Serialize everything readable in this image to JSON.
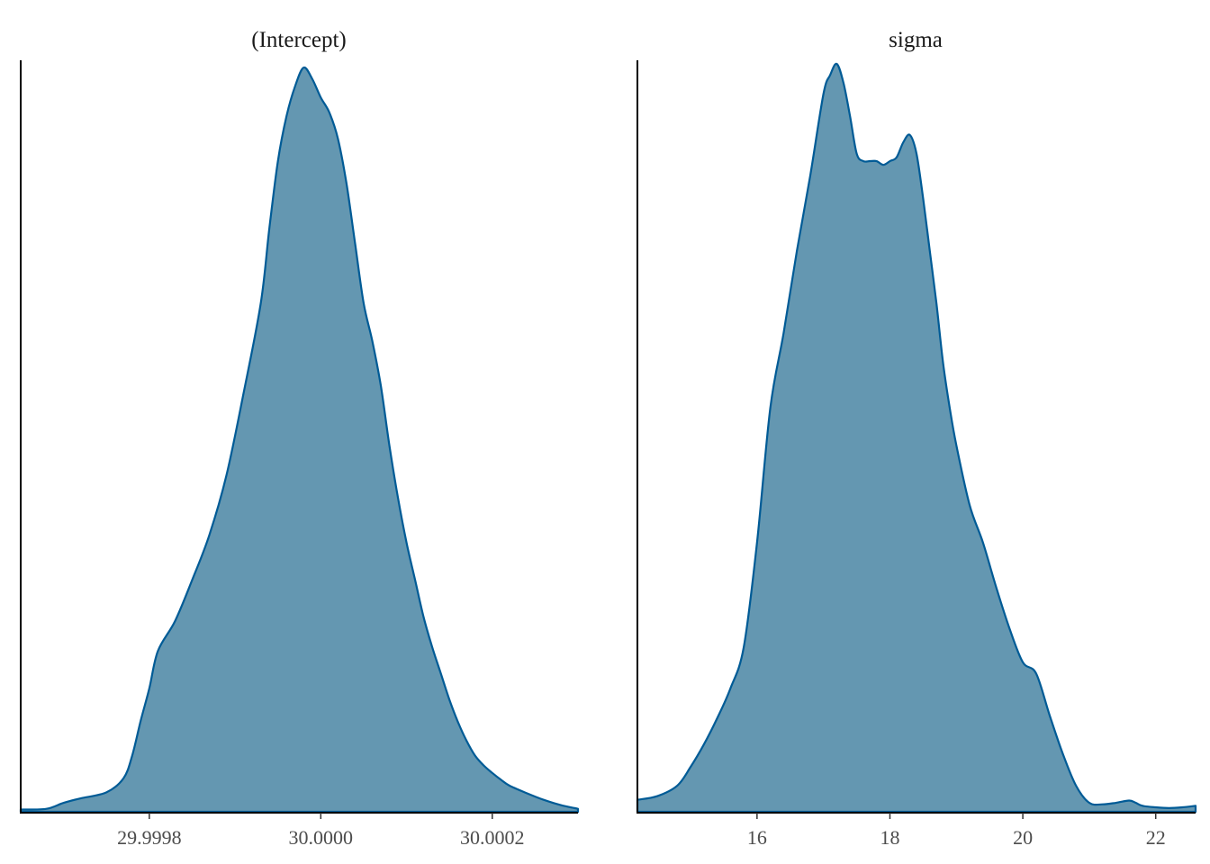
{
  "chart_data": [
    {
      "type": "area",
      "panel": "density",
      "title": "(Intercept)",
      "xlim": [
        29.99965,
        30.0003
      ],
      "ylim": [
        0,
        1
      ],
      "xticks": [
        29.9998,
        30.0,
        30.0002
      ],
      "xtick_labels": [
        "29.9998",
        "30.0000",
        "30.0002"
      ],
      "x": [
        29.99965,
        29.99968,
        29.9997,
        29.99972,
        29.99975,
        29.99977,
        29.99978,
        29.99979,
        29.9998,
        29.99981,
        29.99983,
        29.99985,
        29.99987,
        29.99989,
        29.99991,
        29.99993,
        29.99994,
        29.99995,
        29.99996,
        29.99997,
        29.99998,
        29.99999,
        30.0,
        30.00001,
        30.00002,
        30.00003,
        30.00004,
        30.00005,
        30.00006,
        30.00007,
        30.00008,
        30.00009,
        30.0001,
        30.00011,
        30.00012,
        30.00013,
        30.00014,
        30.00015,
        30.00016,
        30.00017,
        30.00018,
        30.00019,
        30.0002,
        30.00021,
        30.00022,
        30.00024,
        30.00026,
        30.00028,
        30.0003
      ],
      "y": [
        0.003,
        0.004,
        0.012,
        0.018,
        0.026,
        0.045,
        0.075,
        0.122,
        0.165,
        0.215,
        0.255,
        0.31,
        0.37,
        0.45,
        0.56,
        0.68,
        0.78,
        0.87,
        0.93,
        0.97,
        0.995,
        0.98,
        0.955,
        0.935,
        0.9,
        0.84,
        0.76,
        0.68,
        0.63,
        0.57,
        0.49,
        0.42,
        0.36,
        0.31,
        0.26,
        0.22,
        0.185,
        0.15,
        0.12,
        0.095,
        0.075,
        0.062,
        0.052,
        0.043,
        0.035,
        0.025,
        0.016,
        0.009,
        0.004
      ]
    },
    {
      "type": "area",
      "panel": "density",
      "title": "sigma",
      "xlim": [
        14.2,
        22.6
      ],
      "ylim": [
        0,
        1
      ],
      "xticks": [
        16,
        18,
        20,
        22
      ],
      "xtick_labels": [
        "16",
        "18",
        "20",
        "22"
      ],
      "x": [
        14.2,
        14.5,
        14.8,
        15.0,
        15.2,
        15.4,
        15.6,
        15.8,
        16.0,
        16.2,
        16.4,
        16.6,
        16.8,
        17.0,
        17.1,
        17.2,
        17.3,
        17.4,
        17.5,
        17.6,
        17.7,
        17.8,
        17.9,
        18.0,
        18.1,
        18.2,
        18.3,
        18.4,
        18.5,
        18.6,
        18.7,
        18.8,
        18.9,
        19.0,
        19.2,
        19.4,
        19.6,
        19.8,
        20.0,
        20.2,
        20.4,
        20.6,
        20.8,
        21.0,
        21.2,
        21.4,
        21.6,
        21.7,
        21.8,
        22.0,
        22.2,
        22.4,
        22.6
      ],
      "y": [
        0.016,
        0.021,
        0.035,
        0.06,
        0.09,
        0.125,
        0.165,
        0.22,
        0.36,
        0.54,
        0.64,
        0.75,
        0.85,
        0.96,
        0.985,
        1.0,
        0.975,
        0.93,
        0.88,
        0.87,
        0.87,
        0.87,
        0.865,
        0.87,
        0.875,
        0.895,
        0.905,
        0.88,
        0.82,
        0.75,
        0.68,
        0.6,
        0.54,
        0.49,
        0.41,
        0.36,
        0.3,
        0.245,
        0.2,
        0.185,
        0.13,
        0.078,
        0.035,
        0.012,
        0.01,
        0.012,
        0.015,
        0.012,
        0.008,
        0.006,
        0.005,
        0.006,
        0.008
      ]
    }
  ]
}
